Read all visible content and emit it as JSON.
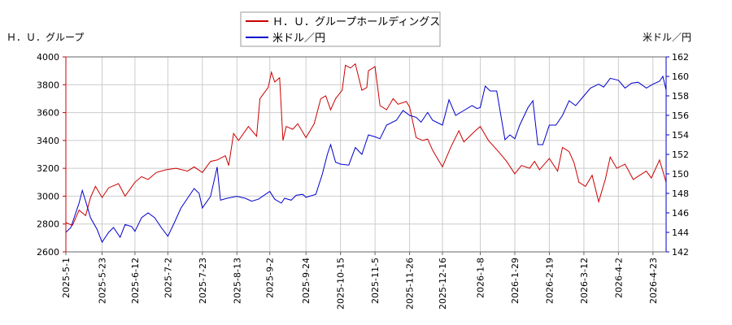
{
  "chart_data": {
    "type": "line",
    "left_axis_label": "Ｈ．Ｕ．グループ",
    "right_axis_label": "米ドル／円",
    "legend": [
      "Ｈ．Ｕ．グループホールディングス",
      "米ドル／円"
    ],
    "legend_placement": "top-center",
    "grid": true,
    "colors": {
      "stock": "#cc0000",
      "usdjpy": "#0000cc",
      "axis_left": "#cc0000",
      "axis_right": "#0000cc"
    },
    "ylim_left": [
      2600,
      4000
    ],
    "ylim_right": [
      142,
      162
    ],
    "yticks_left": [
      2600,
      2800,
      3000,
      3200,
      3400,
      3600,
      3800,
      4000
    ],
    "yticks_right": [
      142,
      144,
      146,
      148,
      150,
      152,
      154,
      156,
      158,
      160,
      162
    ],
    "xlim": [
      "2025-05-01",
      "2026-05-01"
    ],
    "xticks": [
      "2025-5-1",
      "2025-5-23",
      "2025-6-12",
      "2025-7-2",
      "2025-7-23",
      "2025-8-13",
      "2025-9-2",
      "2025-9-24",
      "2025-10-15",
      "2025-11-5",
      "2025-11-26",
      "2025-12-16",
      "2026-1-8",
      "2026-1-29",
      "2026-2-19",
      "2026-3-12",
      "2026-4-2",
      "2026-4-23"
    ],
    "series": [
      {
        "name": "Ｈ．Ｕ．グループホールディングス",
        "axis": "left",
        "points": [
          [
            "2025-05-01",
            2810
          ],
          [
            "2025-05-05",
            2790
          ],
          [
            "2025-05-09",
            2900
          ],
          [
            "2025-05-13",
            2860
          ],
          [
            "2025-05-16",
            2990
          ],
          [
            "2025-05-19",
            3070
          ],
          [
            "2025-05-23",
            2990
          ],
          [
            "2025-05-27",
            3060
          ],
          [
            "2025-06-02",
            3090
          ],
          [
            "2025-06-06",
            3000
          ],
          [
            "2025-06-12",
            3100
          ],
          [
            "2025-06-16",
            3140
          ],
          [
            "2025-06-20",
            3120
          ],
          [
            "2025-06-25",
            3170
          ],
          [
            "2025-07-01",
            3190
          ],
          [
            "2025-07-07",
            3200
          ],
          [
            "2025-07-14",
            3180
          ],
          [
            "2025-07-18",
            3210
          ],
          [
            "2025-07-23",
            3170
          ],
          [
            "2025-07-28",
            3250
          ],
          [
            "2025-08-01",
            3260
          ],
          [
            "2025-08-06",
            3290
          ],
          [
            "2025-08-08",
            3220
          ],
          [
            "2025-08-11",
            3450
          ],
          [
            "2025-08-14",
            3400
          ],
          [
            "2025-08-20",
            3500
          ],
          [
            "2025-08-25",
            3430
          ],
          [
            "2025-08-27",
            3700
          ],
          [
            "2025-09-01",
            3780
          ],
          [
            "2025-09-03",
            3890
          ],
          [
            "2025-09-05",
            3820
          ],
          [
            "2025-09-08",
            3850
          ],
          [
            "2025-09-10",
            3400
          ],
          [
            "2025-09-12",
            3500
          ],
          [
            "2025-09-16",
            3480
          ],
          [
            "2025-09-19",
            3520
          ],
          [
            "2025-09-24",
            3420
          ],
          [
            "2025-09-29",
            3520
          ],
          [
            "2025-10-03",
            3700
          ],
          [
            "2025-10-06",
            3720
          ],
          [
            "2025-10-09",
            3620
          ],
          [
            "2025-10-12",
            3700
          ],
          [
            "2025-10-16",
            3760
          ],
          [
            "2025-10-18",
            3940
          ],
          [
            "2025-10-21",
            3920
          ],
          [
            "2025-10-24",
            3950
          ],
          [
            "2025-10-28",
            3760
          ],
          [
            "2025-10-31",
            3780
          ],
          [
            "2025-11-01",
            3900
          ],
          [
            "2025-11-05",
            3930
          ],
          [
            "2025-11-08",
            3650
          ],
          [
            "2025-11-12",
            3620
          ],
          [
            "2025-11-16",
            3700
          ],
          [
            "2025-11-19",
            3660
          ],
          [
            "2025-11-24",
            3680
          ],
          [
            "2025-11-26",
            3640
          ],
          [
            "2025-11-30",
            3420
          ],
          [
            "2025-12-04",
            3400
          ],
          [
            "2025-12-07",
            3410
          ],
          [
            "2025-12-10",
            3330
          ],
          [
            "2025-12-14",
            3250
          ],
          [
            "2025-12-16",
            3210
          ],
          [
            "2025-12-21",
            3350
          ],
          [
            "2025-12-26",
            3470
          ],
          [
            "2025-12-29",
            3390
          ],
          [
            "2026-01-05",
            3470
          ],
          [
            "2026-01-08",
            3500
          ],
          [
            "2026-01-13",
            3400
          ],
          [
            "2026-01-19",
            3320
          ],
          [
            "2026-01-24",
            3250
          ],
          [
            "2026-01-29",
            3160
          ],
          [
            "2026-02-02",
            3220
          ],
          [
            "2026-02-07",
            3200
          ],
          [
            "2026-02-10",
            3250
          ],
          [
            "2026-02-13",
            3190
          ],
          [
            "2026-02-19",
            3270
          ],
          [
            "2026-02-24",
            3180
          ],
          [
            "2026-02-27",
            3350
          ],
          [
            "2026-03-03",
            3320
          ],
          [
            "2026-03-06",
            3240
          ],
          [
            "2026-03-09",
            3100
          ],
          [
            "2026-03-13",
            3070
          ],
          [
            "2026-03-17",
            3150
          ],
          [
            "2026-03-21",
            2960
          ],
          [
            "2026-03-25",
            3120
          ],
          [
            "2026-03-28",
            3280
          ],
          [
            "2026-04-01",
            3200
          ],
          [
            "2026-04-06",
            3230
          ],
          [
            "2026-04-11",
            3120
          ],
          [
            "2026-04-15",
            3150
          ],
          [
            "2026-04-19",
            3180
          ],
          [
            "2026-04-22",
            3130
          ],
          [
            "2026-04-27",
            3260
          ],
          [
            "2026-05-01",
            3100
          ]
        ]
      },
      {
        "name": "米ドル／円",
        "axis": "right",
        "points": [
          [
            "2025-05-01",
            144.0
          ],
          [
            "2025-05-04",
            144.5
          ],
          [
            "2025-05-07",
            146.0
          ],
          [
            "2025-05-09",
            147.0
          ],
          [
            "2025-05-11",
            148.3
          ],
          [
            "2025-05-13",
            147.2
          ],
          [
            "2025-05-16",
            145.5
          ],
          [
            "2025-05-20",
            144.3
          ],
          [
            "2025-05-23",
            143.0
          ],
          [
            "2025-05-27",
            144.0
          ],
          [
            "2025-05-30",
            144.5
          ],
          [
            "2025-06-03",
            143.5
          ],
          [
            "2025-06-06",
            144.8
          ],
          [
            "2025-06-10",
            144.6
          ],
          [
            "2025-06-12",
            144.1
          ],
          [
            "2025-06-16",
            145.5
          ],
          [
            "2025-06-20",
            146.0
          ],
          [
            "2025-06-24",
            145.5
          ],
          [
            "2025-06-28",
            144.5
          ],
          [
            "2025-07-02",
            143.6
          ],
          [
            "2025-07-06",
            145.0
          ],
          [
            "2025-07-10",
            146.5
          ],
          [
            "2025-07-14",
            147.5
          ],
          [
            "2025-07-18",
            148.5
          ],
          [
            "2025-07-21",
            148.0
          ],
          [
            "2025-07-23",
            146.5
          ],
          [
            "2025-07-28",
            147.7
          ],
          [
            "2025-08-01",
            150.7
          ],
          [
            "2025-08-03",
            147.3
          ],
          [
            "2025-08-07",
            147.5
          ],
          [
            "2025-08-13",
            147.7
          ],
          [
            "2025-08-18",
            147.5
          ],
          [
            "2025-08-22",
            147.2
          ],
          [
            "2025-08-26",
            147.4
          ],
          [
            "2025-09-02",
            148.2
          ],
          [
            "2025-09-05",
            147.4
          ],
          [
            "2025-09-09",
            147.0
          ],
          [
            "2025-09-11",
            147.5
          ],
          [
            "2025-09-15",
            147.3
          ],
          [
            "2025-09-18",
            147.8
          ],
          [
            "2025-09-22",
            147.9
          ],
          [
            "2025-09-24",
            147.6
          ],
          [
            "2025-09-30",
            147.9
          ],
          [
            "2025-10-04",
            150.0
          ],
          [
            "2025-10-07",
            152.0
          ],
          [
            "2025-10-09",
            153.0
          ],
          [
            "2025-10-12",
            151.2
          ],
          [
            "2025-10-15",
            151.0
          ],
          [
            "2025-10-20",
            150.9
          ],
          [
            "2025-10-24",
            152.7
          ],
          [
            "2025-10-28",
            152.0
          ],
          [
            "2025-11-01",
            154.0
          ],
          [
            "2025-11-05",
            153.8
          ],
          [
            "2025-11-08",
            153.6
          ],
          [
            "2025-11-12",
            155.0
          ],
          [
            "2025-11-18",
            155.5
          ],
          [
            "2025-11-22",
            156.5
          ],
          [
            "2025-11-26",
            156.0
          ],
          [
            "2025-11-30",
            155.8
          ],
          [
            "2025-12-03",
            155.3
          ],
          [
            "2025-12-07",
            156.3
          ],
          [
            "2025-12-10",
            155.5
          ],
          [
            "2025-12-16",
            155.0
          ],
          [
            "2025-12-20",
            157.6
          ],
          [
            "2025-12-24",
            156.0
          ],
          [
            "2025-12-29",
            156.5
          ],
          [
            "2026-01-03",
            157.0
          ],
          [
            "2026-01-06",
            156.7
          ],
          [
            "2026-01-08",
            156.8
          ],
          [
            "2026-01-11",
            159.0
          ],
          [
            "2026-01-14",
            158.5
          ],
          [
            "2026-01-18",
            158.5
          ],
          [
            "2026-01-23",
            153.5
          ],
          [
            "2026-01-26",
            154.0
          ],
          [
            "2026-01-29",
            153.6
          ],
          [
            "2026-02-01",
            155.0
          ],
          [
            "2026-02-06",
            156.8
          ],
          [
            "2026-02-09",
            157.5
          ],
          [
            "2026-02-12",
            153.0
          ],
          [
            "2026-02-15",
            153.0
          ],
          [
            "2026-02-19",
            155.0
          ],
          [
            "2026-02-23",
            155.0
          ],
          [
            "2026-02-27",
            156.0
          ],
          [
            "2026-03-03",
            157.5
          ],
          [
            "2026-03-07",
            157.0
          ],
          [
            "2026-03-12",
            158.0
          ],
          [
            "2026-03-16",
            158.8
          ],
          [
            "2026-03-21",
            159.2
          ],
          [
            "2026-03-24",
            158.9
          ],
          [
            "2026-03-28",
            159.8
          ],
          [
            "2026-04-02",
            159.6
          ],
          [
            "2026-04-06",
            158.8
          ],
          [
            "2026-04-10",
            159.3
          ],
          [
            "2026-04-14",
            159.4
          ],
          [
            "2026-04-19",
            158.8
          ],
          [
            "2026-04-23",
            159.2
          ],
          [
            "2026-04-27",
            159.5
          ],
          [
            "2026-04-29",
            160.0
          ],
          [
            "2026-05-01",
            158.6
          ]
        ]
      }
    ]
  }
}
